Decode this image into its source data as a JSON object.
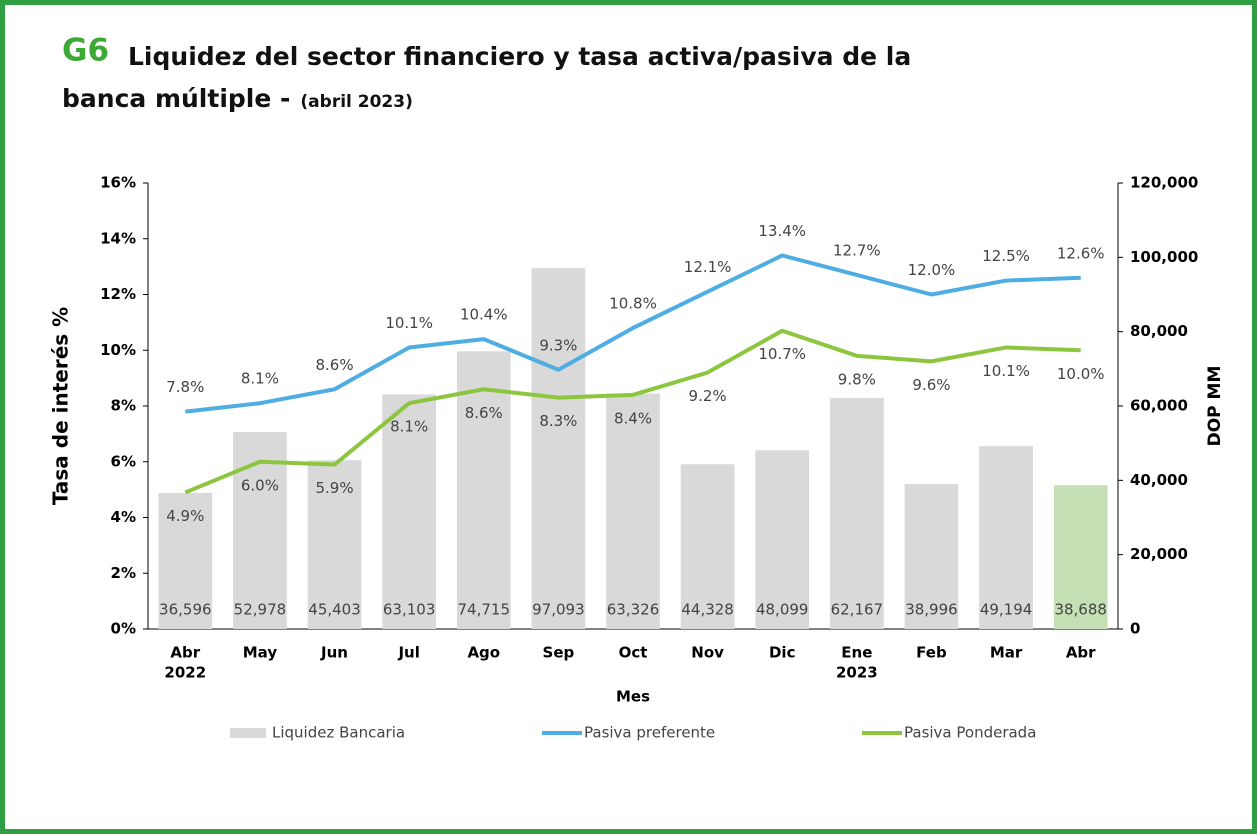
{
  "chart_data": {
    "type": "bar_line",
    "title_tag": "G6",
    "title": "Liquidez del sector financiero y tasa activa/pasiva de la banca múltiple -",
    "subtitle": "(abril 2023)",
    "categories": [
      "Abr",
      "May",
      "Jun",
      "Jul",
      "Ago",
      "Sep",
      "Oct",
      "Nov",
      "Dic",
      "Ene",
      "Feb",
      "Mar",
      "Abr"
    ],
    "category_years": [
      "2022",
      null,
      null,
      null,
      null,
      null,
      null,
      null,
      null,
      "2023",
      null,
      null,
      null
    ],
    "xlabel": "Mes",
    "ylabel": "Tasa de interés %",
    "y2label": "DOP MM",
    "ylim": [
      0,
      16
    ],
    "yticks": [
      {
        "value": 0,
        "label": "0%"
      },
      {
        "value": 2,
        "label": "2%"
      },
      {
        "value": 4,
        "label": "4%"
      },
      {
        "value": 6,
        "label": "6%"
      },
      {
        "value": 8,
        "label": "8%"
      },
      {
        "value": 10,
        "label": "10%"
      },
      {
        "value": 12,
        "label": "12%"
      },
      {
        "value": 14,
        "label": "14%"
      },
      {
        "value": 16,
        "label": "16%"
      }
    ],
    "y2lim": [
      0,
      120000
    ],
    "y2ticks": [
      0,
      {
        "value": 20000,
        "label": "20,000"
      },
      {
        "value": 40000,
        "label": "40,000"
      },
      {
        "value": 60000,
        "label": "60,000"
      },
      {
        "value": 80000,
        "label": "80,000"
      },
      {
        "value": 100000,
        "label": "100,000"
      },
      {
        "value": 120000,
        "label": "120,000"
      }
    ],
    "series": [
      {
        "name": "Liquidez Bancaria",
        "kind": "bar",
        "axis": "y2",
        "color": "#d9d9d9",
        "colors": [
          "#d9d9d9",
          "#d9d9d9",
          "#d9d9d9",
          "#d9d9d9",
          "#d9d9d9",
          "#d9d9d9",
          "#d9d9d9",
          "#d9d9d9",
          "#d9d9d9",
          "#d9d9d9",
          "#d9d9d9",
          "#d9d9d9",
          "#c5e0b4"
        ],
        "values": [
          36596,
          52978,
          45403,
          63103,
          74715,
          97093,
          63326,
          44328,
          48099,
          62167,
          38996,
          49194,
          38688
        ],
        "value_labels": [
          "36,596",
          "52,978",
          "45,403",
          "63,103",
          "74,715",
          "97,093",
          "63,326",
          "44,328",
          "48,099",
          "62,167",
          "38,996",
          "49,194",
          "38,688"
        ]
      },
      {
        "name": "Pasiva preferente",
        "kind": "line",
        "color": "#4eaee3",
        "values": [
          7.8,
          8.1,
          8.6,
          10.1,
          10.4,
          9.3,
          10.8,
          12.1,
          13.4,
          12.7,
          12.0,
          12.5,
          12.6
        ],
        "value_labels": [
          "7.8%",
          "8.1%",
          "8.6%",
          "10.1%",
          "10.4%",
          "9.3%",
          "10.8%",
          "12.1%",
          "13.4%",
          "12.7%",
          "12.0%",
          "12.5%",
          "12.6%"
        ]
      },
      {
        "name": "Pasiva Ponderada",
        "kind": "line",
        "color": "#8cc63f",
        "values": [
          4.9,
          6.0,
          5.9,
          8.1,
          8.6,
          8.3,
          8.4,
          9.2,
          10.7,
          9.8,
          9.6,
          10.1,
          10.0
        ],
        "value_labels": [
          "4.9%",
          "6.0%",
          "5.9%",
          "8.1%",
          "8.6%",
          "8.3%",
          "8.4%",
          "9.2%",
          "10.7%",
          "9.8%",
          "9.6%",
          "10.1%",
          "10.0%"
        ]
      }
    ]
  }
}
